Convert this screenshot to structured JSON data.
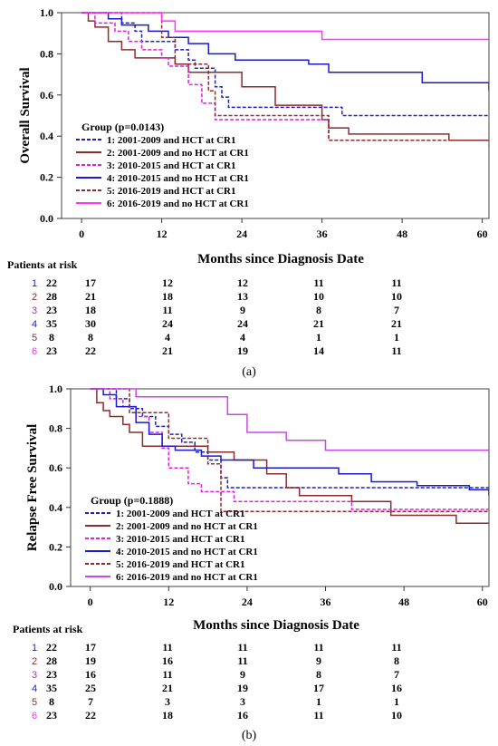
{
  "chart_data": [
    {
      "type": "line",
      "panel_label": "(a)",
      "ylabel": "Overall Survival",
      "xlabel": "Months since Diagnosis Date",
      "xlim": [
        -3,
        61
      ],
      "ylim": [
        0,
        1.0
      ],
      "xticks": [
        "0",
        "12",
        "24",
        "36",
        "48",
        "60"
      ],
      "yticks": [
        "0.0",
        "0.2",
        "0.4",
        "0.6",
        "0.8",
        "1.0"
      ],
      "legend_title": "Group  (p=0.0143)",
      "legend_placement": "bottom-left",
      "series": [
        {
          "name": "1: 2001-2009 and  HCT at CR1",
          "color": "#1f1fbf",
          "dash": "dashed",
          "x": [
            0,
            5,
            6,
            8,
            9,
            14,
            16,
            17,
            20,
            21,
            22,
            36,
            39,
            61
          ],
          "y": [
            1.0,
            1.0,
            0.95,
            0.91,
            0.86,
            0.82,
            0.77,
            0.73,
            0.64,
            0.59,
            0.54,
            0.54,
            0.5,
            0.5
          ]
        },
        {
          "name": "2: 2001-2009 and no HCT at CR1",
          "color": "#8b2d2d",
          "dash": "solid",
          "x": [
            0,
            1,
            2,
            4,
            6,
            8,
            14,
            16,
            19,
            20,
            24,
            29,
            35,
            36,
            37,
            40,
            44,
            49,
            55,
            61
          ],
          "y": [
            1.0,
            0.96,
            0.93,
            0.86,
            0.82,
            0.78,
            0.75,
            0.71,
            0.71,
            0.71,
            0.64,
            0.55,
            0.55,
            0.48,
            0.44,
            0.41,
            0.41,
            0.41,
            0.38,
            0.38
          ]
        },
        {
          "name": "3: 2010-2015 and  HCT at CR1",
          "color": "#e020e0",
          "dash": "dashed",
          "x": [
            0,
            2,
            5,
            7,
            9,
            12,
            13,
            16,
            18,
            20,
            26,
            36,
            37,
            61
          ],
          "y": [
            1.0,
            0.95,
            0.91,
            0.86,
            0.82,
            0.78,
            0.74,
            0.65,
            0.56,
            0.48,
            0.48,
            0.48,
            0.38,
            0.35
          ]
        },
        {
          "name": "4: 2010-2015 and no HCT at CR1",
          "color": "#1a1ad0",
          "dash": "solid",
          "x": [
            0,
            4,
            6,
            10,
            13,
            16,
            19,
            23,
            24,
            32,
            34,
            37,
            48,
            51,
            60,
            61
          ],
          "y": [
            1.0,
            0.97,
            0.94,
            0.91,
            0.88,
            0.85,
            0.8,
            0.77,
            0.77,
            0.77,
            0.75,
            0.71,
            0.71,
            0.66,
            0.66,
            0.62
          ]
        },
        {
          "name": "5: 2016-2019 and  HCT at CR1",
          "color": "#8b2d2d",
          "dash": "dashed",
          "x": [
            0,
            11,
            12,
            14,
            17,
            19,
            20,
            24,
            34,
            37,
            61
          ],
          "y": [
            1.0,
            1.0,
            0.88,
            0.75,
            0.75,
            0.62,
            0.5,
            0.5,
            0.5,
            0.38,
            0.38
          ]
        },
        {
          "name": "6: 2016-2019 and no HCT at CR1",
          "color": "#ff33ff",
          "dash": "solid",
          "x": [
            0,
            2,
            12,
            14,
            31,
            36,
            61
          ],
          "y": [
            1.0,
            1.0,
            0.96,
            0.91,
            0.91,
            0.87,
            0.87
          ]
        }
      ],
      "risk_table": {
        "title": "Patients at risk",
        "times": [
          "0",
          "12",
          "24",
          "36",
          "48",
          "60"
        ],
        "rows": [
          {
            "id": "1",
            "color": "#1f1fbf",
            "values": [
              "22",
              "17",
              "12",
              "12",
              "11",
              "11"
            ]
          },
          {
            "id": "2",
            "color": "#8b2d2d",
            "values": [
              "28",
              "21",
              "18",
              "13",
              "10",
              "10"
            ]
          },
          {
            "id": "3",
            "color": "#b030b0",
            "values": [
              "23",
              "18",
              "11",
              "9",
              "8",
              "7"
            ]
          },
          {
            "id": "4",
            "color": "#1a1ad0",
            "values": [
              "35",
              "30",
              "24",
              "24",
              "21",
              "21"
            ]
          },
          {
            "id": "5",
            "color": "#8b2d2d",
            "values": [
              "8",
              "8",
              "4",
              "4",
              "1",
              "1"
            ]
          },
          {
            "id": "6",
            "color": "#e040e0",
            "values": [
              "23",
              "22",
              "21",
              "19",
              "14",
              "11"
            ]
          }
        ]
      }
    },
    {
      "type": "line",
      "panel_label": "(b)",
      "ylabel": "Relapse Free Survival",
      "xlabel": "Months since Diagnosis Date",
      "xlim": [
        -3,
        61
      ],
      "ylim": [
        0,
        1.0
      ],
      "xticks": [
        "0",
        "12",
        "24",
        "36",
        "48",
        "60"
      ],
      "yticks": [
        "0.0",
        "0.2",
        "0.4",
        "0.6",
        "0.8",
        "1.0"
      ],
      "legend_title": "Group  (p=0.1888)",
      "legend_placement": "bottom-left",
      "series": [
        {
          "name": "1: 2001-2009 and  HCT at CR1",
          "color": "#1f1fbf",
          "dash": "dashed",
          "x": [
            0,
            4,
            6,
            8,
            10,
            12,
            14,
            16,
            18,
            20,
            21,
            48,
            61
          ],
          "y": [
            1.0,
            0.95,
            0.9,
            0.86,
            0.81,
            0.77,
            0.73,
            0.68,
            0.64,
            0.55,
            0.5,
            0.5,
            0.48
          ]
        },
        {
          "name": "2: 2001-2009 and no HCT at CR1",
          "color": "#8b2d2d",
          "dash": "solid",
          "x": [
            0,
            1,
            2,
            3,
            5,
            6,
            8,
            14,
            18,
            22,
            27,
            30,
            32,
            40,
            46,
            56,
            61
          ],
          "y": [
            1.0,
            0.93,
            0.89,
            0.86,
            0.82,
            0.78,
            0.71,
            0.71,
            0.68,
            0.64,
            0.57,
            0.5,
            0.46,
            0.43,
            0.36,
            0.32,
            0.32
          ]
        },
        {
          "name": "3: 2010-2015 and  HCT at CR1",
          "color": "#e020e0",
          "dash": "dashed",
          "x": [
            0,
            3,
            5,
            7,
            9,
            11,
            12,
            15,
            17,
            20,
            22,
            30,
            40,
            61
          ],
          "y": [
            1.0,
            0.95,
            0.91,
            0.86,
            0.78,
            0.7,
            0.6,
            0.52,
            0.48,
            0.48,
            0.43,
            0.43,
            0.39,
            0.39
          ]
        },
        {
          "name": "4: 2010-2015 and no HCT at CR1",
          "color": "#1a1ad0",
          "dash": "solid",
          "x": [
            0,
            2,
            4,
            7,
            9,
            11,
            13,
            17,
            20,
            25,
            30,
            38,
            43,
            50,
            58,
            61
          ],
          "y": [
            1.0,
            0.97,
            0.91,
            0.83,
            0.77,
            0.71,
            0.69,
            0.66,
            0.64,
            0.6,
            0.6,
            0.57,
            0.53,
            0.51,
            0.49,
            0.46
          ]
        },
        {
          "name": "5: 2016-2019 and  HCT at CR1",
          "color": "#8b2d2d",
          "dash": "dashed",
          "x": [
            0,
            6,
            12,
            15,
            18,
            20,
            24,
            44,
            61
          ],
          "y": [
            1.0,
            0.88,
            0.75,
            0.75,
            0.62,
            0.38,
            0.38,
            0.38,
            0.38
          ]
        },
        {
          "name": "6: 2016-2019 and no HCT at CR1",
          "color": "#cc44ee",
          "dash": "solid",
          "x": [
            0,
            7,
            12,
            21,
            24,
            30,
            36,
            61
          ],
          "y": [
            1.0,
            0.96,
            0.96,
            0.87,
            0.78,
            0.74,
            0.69,
            0.69
          ]
        }
      ],
      "risk_table": {
        "title": "Patients at risk",
        "times": [
          "0",
          "12",
          "24",
          "36",
          "48",
          "60"
        ],
        "rows": [
          {
            "id": "1",
            "color": "#1f1fbf",
            "values": [
              "22",
              "17",
              "11",
              "11",
              "11",
              "11"
            ]
          },
          {
            "id": "2",
            "color": "#8b2d2d",
            "values": [
              "28",
              "19",
              "16",
              "11",
              "9",
              "8"
            ]
          },
          {
            "id": "3",
            "color": "#b030b0",
            "values": [
              "23",
              "16",
              "11",
              "9",
              "8",
              "7"
            ]
          },
          {
            "id": "4",
            "color": "#1a1ad0",
            "values": [
              "35",
              "25",
              "21",
              "19",
              "17",
              "16"
            ]
          },
          {
            "id": "5",
            "color": "#8b2d2d",
            "values": [
              "8",
              "7",
              "3",
              "3",
              "1",
              "1"
            ]
          },
          {
            "id": "6",
            "color": "#e040e0",
            "values": [
              "23",
              "22",
              "18",
              "16",
              "11",
              "10"
            ]
          }
        ]
      }
    }
  ]
}
